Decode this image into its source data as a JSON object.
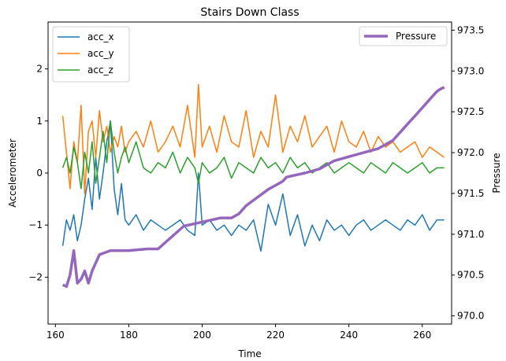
{
  "chart_data": {
    "type": "line",
    "title": "Stairs Down Class",
    "xlabel": "Time",
    "ylabel_left": "Accelerometer",
    "ylabel_right": "Pressure",
    "xlim": [
      158,
      268
    ],
    "ylim_left": [
      -2.9,
      2.9
    ],
    "ylim_right": [
      969.9,
      973.6
    ],
    "x_ticks": [
      160,
      180,
      200,
      220,
      240,
      260
    ],
    "y_left_ticks": [
      -2,
      -1,
      0,
      1,
      2
    ],
    "y_right_ticks": [
      970.0,
      970.5,
      971.0,
      971.5,
      972.0,
      972.5,
      973.0,
      973.5
    ],
    "grid": false,
    "legend_left_position": "top-left",
    "legend_right_position": "top-right",
    "series_left": [
      {
        "name": "acc_x",
        "color": "#1f77b4",
        "x": [
          162,
          163,
          164,
          165,
          166,
          167,
          168,
          169,
          170,
          171,
          172,
          173,
          174,
          175,
          176,
          177,
          178,
          179,
          180,
          182,
          184,
          186,
          188,
          190,
          192,
          194,
          196,
          198,
          199,
          200,
          202,
          204,
          206,
          208,
          210,
          212,
          214,
          216,
          218,
          220,
          222,
          224,
          226,
          228,
          230,
          232,
          234,
          236,
          238,
          240,
          242,
          244,
          246,
          248,
          250,
          252,
          254,
          256,
          258,
          260,
          262,
          264,
          266
        ],
        "values": [
          -1.4,
          -0.9,
          -1.1,
          -0.8,
          -1.3,
          -1.0,
          -0.5,
          -0.1,
          -0.7,
          0.3,
          -0.5,
          0.0,
          0.6,
          1.0,
          -0.3,
          -0.8,
          -0.2,
          -0.9,
          -1.0,
          -0.8,
          -1.1,
          -0.9,
          -1.0,
          -1.1,
          -1.0,
          -0.9,
          -1.1,
          -1.2,
          0.0,
          -1.0,
          -0.9,
          -1.1,
          -1.0,
          -1.2,
          -1.0,
          -1.1,
          -0.9,
          -1.5,
          -0.6,
          -1.0,
          -0.4,
          -1.2,
          -0.8,
          -1.4,
          -1.0,
          -1.3,
          -0.9,
          -1.1,
          -1.0,
          -1.2,
          -1.0,
          -0.9,
          -1.1,
          -1.0,
          -0.9,
          -1.0,
          -1.1,
          -0.9,
          -1.0,
          -0.8,
          -1.1,
          -0.9,
          -0.9
        ]
      },
      {
        "name": "acc_y",
        "color": "#ff7f0e",
        "x": [
          162,
          163,
          164,
          165,
          166,
          167,
          168,
          169,
          170,
          171,
          172,
          173,
          174,
          175,
          176,
          177,
          178,
          179,
          180,
          182,
          184,
          186,
          188,
          190,
          192,
          194,
          196,
          198,
          199,
          200,
          202,
          204,
          206,
          208,
          210,
          212,
          214,
          216,
          218,
          220,
          222,
          224,
          226,
          228,
          230,
          232,
          234,
          236,
          238,
          240,
          242,
          244,
          246,
          248,
          250,
          252,
          254,
          256,
          258,
          260,
          262,
          264,
          266
        ],
        "values": [
          1.1,
          0.4,
          -0.3,
          0.6,
          0.2,
          1.3,
          -0.4,
          0.8,
          1.0,
          0.3,
          1.2,
          0.6,
          0.9,
          0.4,
          0.7,
          0.5,
          0.9,
          0.4,
          0.6,
          0.8,
          0.5,
          1.0,
          0.4,
          0.6,
          0.9,
          0.5,
          1.3,
          0.3,
          1.7,
          0.5,
          0.9,
          0.4,
          1.1,
          0.6,
          0.5,
          1.2,
          0.3,
          0.8,
          0.5,
          1.5,
          0.4,
          0.9,
          0.6,
          1.1,
          0.5,
          0.7,
          0.9,
          0.4,
          1.0,
          0.6,
          0.5,
          0.8,
          0.4,
          0.7,
          0.5,
          0.6,
          0.4,
          0.5,
          0.6,
          0.3,
          0.5,
          0.4,
          0.3
        ]
      },
      {
        "name": "acc_z",
        "color": "#2ca02c",
        "x": [
          162,
          163,
          164,
          165,
          166,
          167,
          168,
          169,
          170,
          171,
          172,
          173,
          174,
          175,
          176,
          177,
          178,
          179,
          180,
          182,
          184,
          186,
          188,
          190,
          192,
          194,
          196,
          198,
          199,
          200,
          202,
          204,
          206,
          208,
          210,
          212,
          214,
          216,
          218,
          220,
          222,
          224,
          226,
          228,
          230,
          232,
          234,
          236,
          238,
          240,
          242,
          244,
          246,
          248,
          250,
          252,
          254,
          256,
          258,
          260,
          262,
          264,
          266
        ],
        "values": [
          0.1,
          0.3,
          0.0,
          0.5,
          0.2,
          -0.3,
          0.4,
          0.0,
          0.6,
          -0.2,
          0.3,
          0.8,
          0.2,
          1.0,
          0.4,
          0.0,
          0.3,
          0.5,
          0.2,
          0.6,
          0.1,
          0.0,
          0.2,
          0.1,
          0.4,
          0.0,
          0.3,
          0.1,
          -0.2,
          0.2,
          0.0,
          0.1,
          0.3,
          -0.1,
          0.2,
          0.1,
          0.0,
          0.3,
          0.1,
          0.2,
          0.0,
          0.3,
          0.1,
          0.2,
          0.0,
          0.1,
          0.2,
          0.0,
          0.1,
          0.2,
          0.1,
          0.0,
          0.2,
          0.1,
          0.0,
          0.2,
          0.1,
          0.0,
          0.1,
          0.2,
          0.0,
          0.1,
          0.1
        ]
      }
    ],
    "series_right": [
      {
        "name": "Pressure",
        "color": "#9467bd",
        "x": [
          162,
          163,
          164,
          165,
          166,
          167,
          168,
          169,
          170,
          172,
          175,
          180,
          185,
          188,
          190,
          195,
          200,
          205,
          208,
          210,
          212,
          215,
          218,
          220,
          222,
          223,
          225,
          228,
          232,
          236,
          240,
          244,
          248,
          252,
          256,
          258,
          260,
          262,
          264,
          265,
          266
        ],
        "values": [
          970.38,
          970.36,
          970.5,
          970.8,
          970.4,
          970.45,
          970.55,
          970.4,
          970.55,
          970.75,
          970.8,
          970.8,
          970.82,
          970.82,
          970.9,
          971.1,
          971.15,
          971.2,
          971.2,
          971.25,
          971.35,
          971.45,
          971.55,
          971.6,
          971.65,
          971.7,
          971.72,
          971.75,
          971.8,
          971.9,
          971.95,
          972.0,
          972.05,
          972.15,
          972.35,
          972.45,
          972.55,
          972.65,
          972.75,
          972.78,
          972.8
        ]
      }
    ]
  }
}
